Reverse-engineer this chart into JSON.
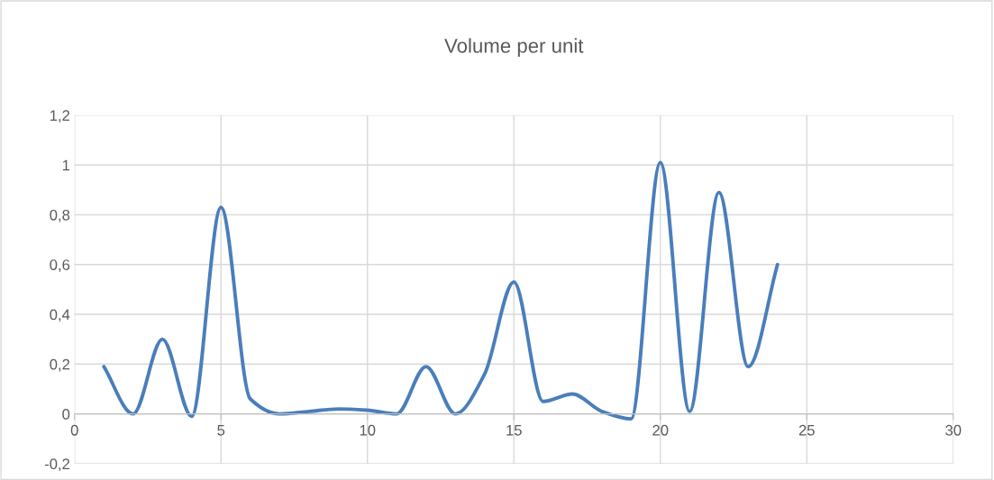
{
  "chart_data": {
    "type": "line",
    "title": "Volume per unit",
    "x": [
      1,
      2,
      3,
      4,
      5,
      6,
      7,
      8,
      9,
      10,
      11,
      12,
      13,
      14,
      15,
      16,
      17,
      18,
      19,
      20,
      21,
      22,
      23,
      24
    ],
    "series": [
      {
        "color": "#4a7ebb",
        "values": [
          0.19,
          0.0,
          0.3,
          -0.01,
          0.83,
          0.06,
          0.0,
          0.01,
          0.02,
          0.015,
          0.0,
          0.19,
          0.0,
          0.16,
          0.53,
          0.05,
          0.08,
          0.01,
          -0.02,
          1.01,
          0.01,
          0.89,
          0.19,
          0.6
        ]
      }
    ],
    "xlim": [
      0,
      30
    ],
    "xticks": [
      0,
      5,
      10,
      15,
      20,
      25,
      30
    ],
    "ylim": [
      -0.2,
      1.2
    ],
    "yticks": [
      {
        "value": -0.2,
        "label": "-0,2"
      },
      {
        "value": 0,
        "label": "0"
      },
      {
        "value": 0.2,
        "label": "0,2"
      },
      {
        "value": 0.4,
        "label": "0,4"
      },
      {
        "value": 0.6,
        "label": "0,6"
      },
      {
        "value": 0.8,
        "label": "0,8"
      },
      {
        "value": 1,
        "label": "1"
      },
      {
        "value": 1.2,
        "label": "1,2"
      }
    ],
    "grid": true,
    "marker": "none",
    "line_style": "solid"
  }
}
